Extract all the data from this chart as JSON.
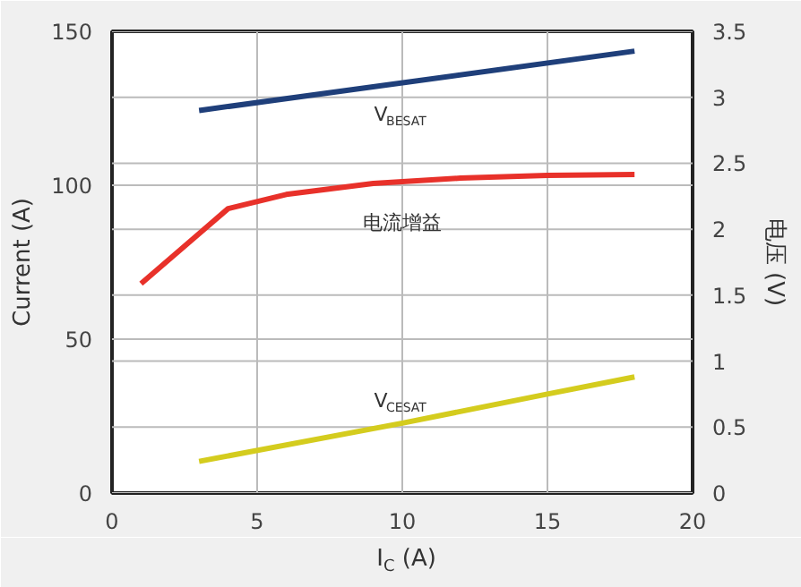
{
  "chart_data": {
    "type": "line",
    "xlabel": "I$_{C}$ (A)",
    "ylabel": "Current (A)",
    "y2label": "电压 (V)",
    "xlim": [
      0,
      20
    ],
    "xticks": [
      0,
      5,
      10,
      15,
      20
    ],
    "ylim": [
      0,
      150
    ],
    "yticks": [
      0,
      50,
      100,
      150
    ],
    "y2lim": [
      0,
      3.5
    ],
    "y2ticks": [
      0,
      0.5,
      1,
      1.5,
      2,
      2.5,
      3,
      3.5
    ],
    "grid": true,
    "marker": "none",
    "line_style": "solid",
    "series": [
      {
        "color": "#1f3f7a",
        "axis": "y2",
        "x": [
          3,
          18
        ],
        "values": [
          2.9,
          3.35
        ]
      },
      {
        "color": "#e8312a",
        "axis": "y",
        "x": [
          1,
          4,
          6,
          9,
          12,
          15,
          18
        ],
        "values": [
          68,
          92.4,
          97,
          100.6,
          102.3,
          103.2,
          103.5
        ]
      },
      {
        "color": "#d4cc1e",
        "axis": "y2",
        "x": [
          3,
          10,
          15,
          18
        ],
        "values": [
          0.24,
          0.53,
          0.75,
          0.88
        ]
      }
    ],
    "annotations": [
      "V$_{BESAT}$",
      "电流增益",
      "V$_{CESAT}$"
    ]
  }
}
